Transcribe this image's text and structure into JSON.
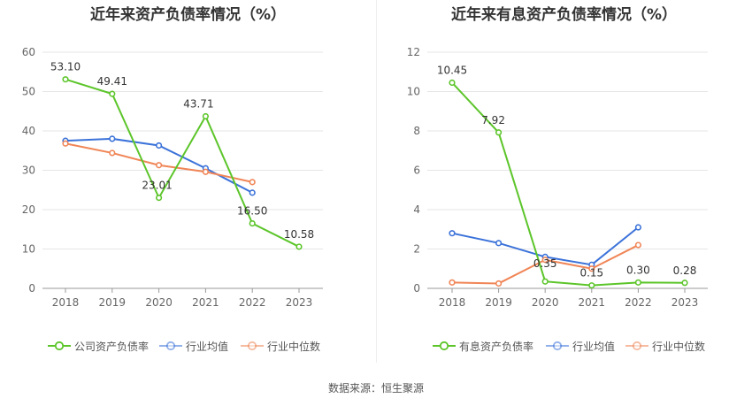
{
  "chart_data": [
    {
      "type": "line",
      "title": "近年来资产负债率情况（%）",
      "categories": [
        "2018",
        "2019",
        "2020",
        "2021",
        "2022",
        "2023"
      ],
      "y_ticks": [
        "0",
        "10",
        "20",
        "30",
        "40",
        "50",
        "60"
      ],
      "ylim": [
        0,
        60
      ],
      "grid": true,
      "legend_position": "bottom",
      "series": [
        {
          "name": "公司资产负债率",
          "color": "#5cc52a",
          "values": [
            53.1,
            49.41,
            23.01,
            43.71,
            16.5,
            10.58
          ],
          "labels": [
            "53.10",
            "49.41",
            "23.01",
            "43.71",
            "16.50",
            "10.58"
          ]
        },
        {
          "name": "行业均值",
          "color": "#3b72d9",
          "values": [
            37.5,
            38.0,
            36.3,
            30.5,
            24.3,
            null
          ]
        },
        {
          "name": "行业中位数",
          "color": "#f08556",
          "values": [
            36.8,
            34.4,
            31.3,
            29.6,
            27.0,
            null
          ]
        }
      ]
    },
    {
      "type": "line",
      "title": "近年来有息资产负债率情况（%）",
      "categories": [
        "2018",
        "2019",
        "2020",
        "2021",
        "2022",
        "2023"
      ],
      "y_ticks": [
        "0",
        "2",
        "4",
        "6",
        "8",
        "10",
        "12"
      ],
      "ylim": [
        0,
        12
      ],
      "grid": true,
      "legend_position": "bottom",
      "series": [
        {
          "name": "有息资产负债率",
          "color": "#5cc52a",
          "values": [
            10.45,
            7.92,
            0.35,
            0.15,
            0.3,
            0.28
          ],
          "labels": [
            "10.45",
            "7.92",
            "0.35",
            "0.15",
            "0.30",
            "0.28"
          ]
        },
        {
          "name": "行业均值",
          "color": "#3b72d9",
          "values": [
            2.8,
            2.3,
            1.6,
            1.2,
            3.1,
            null
          ]
        },
        {
          "name": "行业中位数",
          "color": "#f08556",
          "values": [
            0.3,
            0.25,
            1.45,
            1.0,
            2.2,
            null
          ]
        }
      ]
    }
  ],
  "footer": {
    "source": "数据来源：恒生聚源"
  }
}
